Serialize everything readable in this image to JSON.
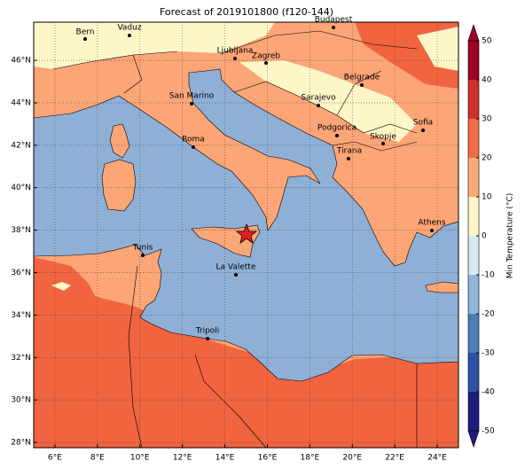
{
  "map": {
    "title": "Forecast of 2019101800 (f120-144)",
    "xlim": [
      5,
      25
    ],
    "ylim": [
      27.75,
      47.8
    ],
    "xticks": [
      {
        "value": 6,
        "label": "6°E"
      },
      {
        "value": 8,
        "label": "8°E"
      },
      {
        "value": 10,
        "label": "10°E"
      },
      {
        "value": 12,
        "label": "12°E"
      },
      {
        "value": 14,
        "label": "14°E"
      },
      {
        "value": 16,
        "label": "16°E"
      },
      {
        "value": 18,
        "label": "18°E"
      },
      {
        "value": 20,
        "label": "20°E"
      },
      {
        "value": 22,
        "label": "22°E"
      },
      {
        "value": 24,
        "label": "24°E"
      }
    ],
    "yticks": [
      {
        "value": 28,
        "label": "28°N"
      },
      {
        "value": 30,
        "label": "30°N"
      },
      {
        "value": 32,
        "label": "32°N"
      },
      {
        "value": 34,
        "label": "34°N"
      },
      {
        "value": 36,
        "label": "36°N"
      },
      {
        "value": 38,
        "label": "38°N"
      },
      {
        "value": 40,
        "label": "40°N"
      },
      {
        "value": 42,
        "label": "42°N"
      },
      {
        "value": 44,
        "label": "44°N"
      },
      {
        "value": 46,
        "label": "46°N"
      }
    ],
    "grid": true,
    "cities": [
      "Bern",
      "Vaduz",
      "Budapest",
      "Ljubljana",
      "Zagreb",
      "Belgrade",
      "San Marino",
      "Sarajevo",
      "Sofia",
      "Podgorica",
      "Skopje",
      "Roma",
      "Tirana",
      "Athens",
      "Tunis",
      "La Valette",
      "Tripoli"
    ],
    "colorbar": {
      "label": "Min Temperature (°C)",
      "lim": [
        -50,
        50
      ],
      "ticks": [
        -50,
        -40,
        -30,
        -20,
        -10,
        0,
        10,
        20,
        30,
        40,
        50
      ],
      "colors": [
        "#1c1c80",
        "#2d52a3",
        "#4c7db7",
        "#8db6da",
        "#d3eaf3",
        "#fff6c8",
        "#fdaa78",
        "#f26c44",
        "#d0302a",
        "#a00026"
      ]
    }
  }
}
